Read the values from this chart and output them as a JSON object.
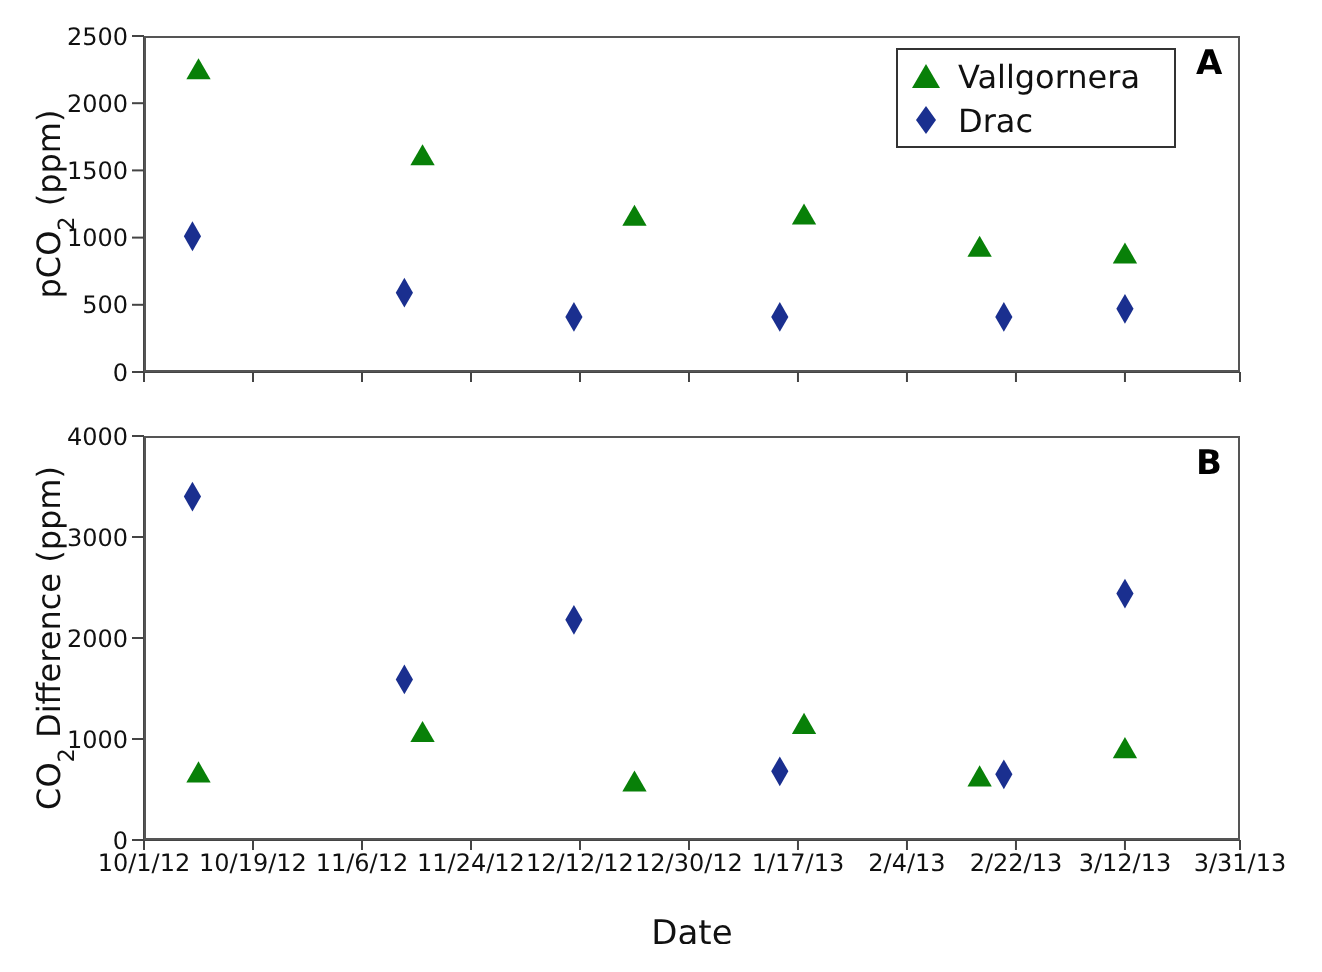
{
  "chart_data": [
    {
      "type": "scatter",
      "ylabel": "pCO$_{2}$ (ppm)",
      "annotations": [
        "A"
      ],
      "legend": "top right",
      "tick_labels": "y",
      "grid": false,
      "xlim": [
        "2012-10-01",
        "2013-03-31"
      ],
      "xticks": [
        {
          "value": "2012-10-01",
          "label": null
        },
        {
          "value": "2012-10-19",
          "label": null
        },
        {
          "value": "2012-11-06",
          "label": null
        },
        {
          "value": "2012-11-24",
          "label": null
        },
        {
          "value": "2012-12-12",
          "label": null
        },
        {
          "value": "2012-12-30",
          "label": null
        },
        {
          "value": "2013-01-17",
          "label": null
        },
        {
          "value": "2013-02-04",
          "label": null
        },
        {
          "value": "2013-02-22",
          "label": null
        },
        {
          "value": "2013-03-12",
          "label": null
        },
        {
          "value": "2013-03-31",
          "label": null
        }
      ],
      "ylim": [
        0,
        2500
      ],
      "yticks": [
        0,
        500,
        1000,
        1500,
        2000,
        2500
      ],
      "series": [
        {
          "name": "Vallgornera",
          "color": "#088008",
          "marker": "triangle",
          "x": [
            "2012-10-10",
            "2012-11-16",
            "2012-12-21",
            "2013-01-18",
            "2013-02-16",
            "2013-03-12"
          ],
          "values": [
            2230,
            1590,
            1140,
            1150,
            910,
            860
          ]
        },
        {
          "name": "Drac",
          "color": "#1a2f8f",
          "marker": "diamond",
          "x": [
            "2012-10-09",
            "2012-11-13",
            "2012-12-11",
            "2013-01-14",
            "2013-02-20",
            "2013-03-12"
          ],
          "values": [
            1010,
            590,
            410,
            410,
            410,
            470
          ]
        }
      ]
    },
    {
      "type": "scatter",
      "xlabel": "Date",
      "ylabel": "CO$_{2}$ Difference (ppm)",
      "annotations": [
        "B"
      ],
      "grid": false,
      "xlim": [
        "2012-10-01",
        "2013-03-31"
      ],
      "xticks": [
        {
          "value": "2012-10-01",
          "label": "10/1/12"
        },
        {
          "value": "2012-10-19",
          "label": "10/19/12"
        },
        {
          "value": "2012-11-06",
          "label": "11/6/12"
        },
        {
          "value": "2012-11-24",
          "label": "11/24/12"
        },
        {
          "value": "2012-12-12",
          "label": "12/12/12"
        },
        {
          "value": "2012-12-30",
          "label": "12/30/12"
        },
        {
          "value": "2013-01-17",
          "label": "1/17/13"
        },
        {
          "value": "2013-02-04",
          "label": "2/4/13"
        },
        {
          "value": "2013-02-22",
          "label": "2/22/13"
        },
        {
          "value": "2013-03-12",
          "label": "3/12/13"
        },
        {
          "value": "2013-03-31",
          "label": "3/31/13"
        }
      ],
      "ylim": [
        0,
        4000
      ],
      "yticks": [
        0,
        1000,
        2000,
        3000,
        4000
      ],
      "series": [
        {
          "color": "#088008",
          "marker": "triangle",
          "x": [
            "2012-10-10",
            "2012-11-16",
            "2012-12-21",
            "2013-01-18",
            "2013-02-16",
            "2013-03-12"
          ],
          "values": [
            640,
            1040,
            550,
            1120,
            600,
            880
          ]
        },
        {
          "color": "#1a2f8f",
          "marker": "diamond",
          "x": [
            "2012-10-09",
            "2012-11-13",
            "2012-12-11",
            "2013-01-14",
            "2013-02-20",
            "2013-03-12"
          ],
          "values": [
            3400,
            1590,
            2180,
            680,
            650,
            2440
          ]
        }
      ]
    }
  ]
}
